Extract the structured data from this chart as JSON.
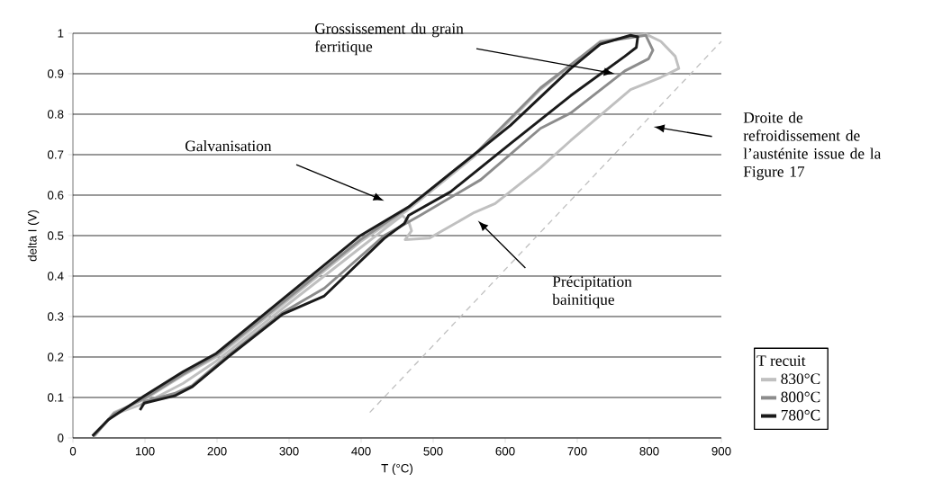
{
  "chart_data": {
    "type": "line",
    "xlabel": "T (°C)",
    "ylabel": "delta I (V)",
    "xlim": [
      0,
      900
    ],
    "ylim": [
      0,
      1
    ],
    "xticks": [
      0,
      100,
      200,
      300,
      400,
      500,
      600,
      700,
      800,
      900
    ],
    "yticks": [
      0,
      0.1,
      0.2,
      0.3,
      0.4,
      0.5,
      0.6,
      0.7,
      0.8,
      0.9,
      1
    ],
    "grid": "y",
    "legend": "right",
    "legend_title": "T recuit",
    "annotations": [
      "Grossissement du grain ferritique",
      "Galvanisation",
      "Droite de refroidissement de l’austénite issue de la Figure 17",
      "Précipitation bainitique"
    ],
    "series": [
      {
        "name": "830°C",
        "color": "#c0c0c0",
        "x": [
          30,
          57,
          99,
          153,
          199,
          291,
          399,
          462,
          560,
          649,
          732,
          795,
          816,
          836,
          841,
          816,
          774,
          691,
          649,
          586,
          557,
          495,
          461,
          470,
          466,
          457,
          399,
          291,
          199,
          153,
          99,
          60
        ],
        "values": [
          0.005,
          0.063,
          0.095,
          0.155,
          0.2,
          0.33,
          0.485,
          0.56,
          0.7,
          0.861,
          0.98,
          0.998,
          0.98,
          0.943,
          0.913,
          0.891,
          0.861,
          0.735,
          0.668,
          0.579,
          0.557,
          0.494,
          0.49,
          0.512,
          0.535,
          0.55,
          0.47,
          0.32,
          0.19,
          0.135,
          0.085,
          0.06
        ]
      },
      {
        "name": "800°C",
        "color": "#8c8c8c",
        "x": [
          28,
          57,
          99,
          153,
          199,
          291,
          399,
          462,
          560,
          649,
          732,
          795,
          805,
          799,
          766,
          691,
          649,
          566,
          482,
          432,
          349,
          291,
          216,
          166,
          141,
          99,
          95
        ],
        "values": [
          0.003,
          0.06,
          0.098,
          0.158,
          0.205,
          0.335,
          0.49,
          0.565,
          0.705,
          0.865,
          0.978,
          0.995,
          0.958,
          0.937,
          0.907,
          0.803,
          0.765,
          0.638,
          0.55,
          0.5,
          0.37,
          0.31,
          0.205,
          0.13,
          0.11,
          0.09,
          0.08
        ]
      },
      {
        "name": "780°C",
        "color": "#1a1a1a",
        "x": [
          27,
          49,
          99,
          153,
          199,
          291,
          399,
          466,
          607,
          691,
          732,
          774,
          784,
          782,
          766,
          691,
          607,
          524,
          466,
          460,
          432,
          349,
          291,
          216,
          166,
          141,
          99,
          93
        ],
        "values": [
          0.005,
          0.045,
          0.104,
          0.164,
          0.209,
          0.343,
          0.5,
          0.571,
          0.772,
          0.913,
          0.973,
          0.995,
          0.991,
          0.965,
          0.943,
          0.846,
          0.727,
          0.608,
          0.55,
          0.53,
          0.493,
          0.351,
          0.306,
          0.201,
          0.127,
          0.104,
          0.086,
          0.069
        ]
      },
      {
        "color": "#c0c0c0",
        "line_style": "dashed",
        "x": [
          412,
          900
        ],
        "values": [
          0.063,
          0.98
        ]
      }
    ]
  }
}
